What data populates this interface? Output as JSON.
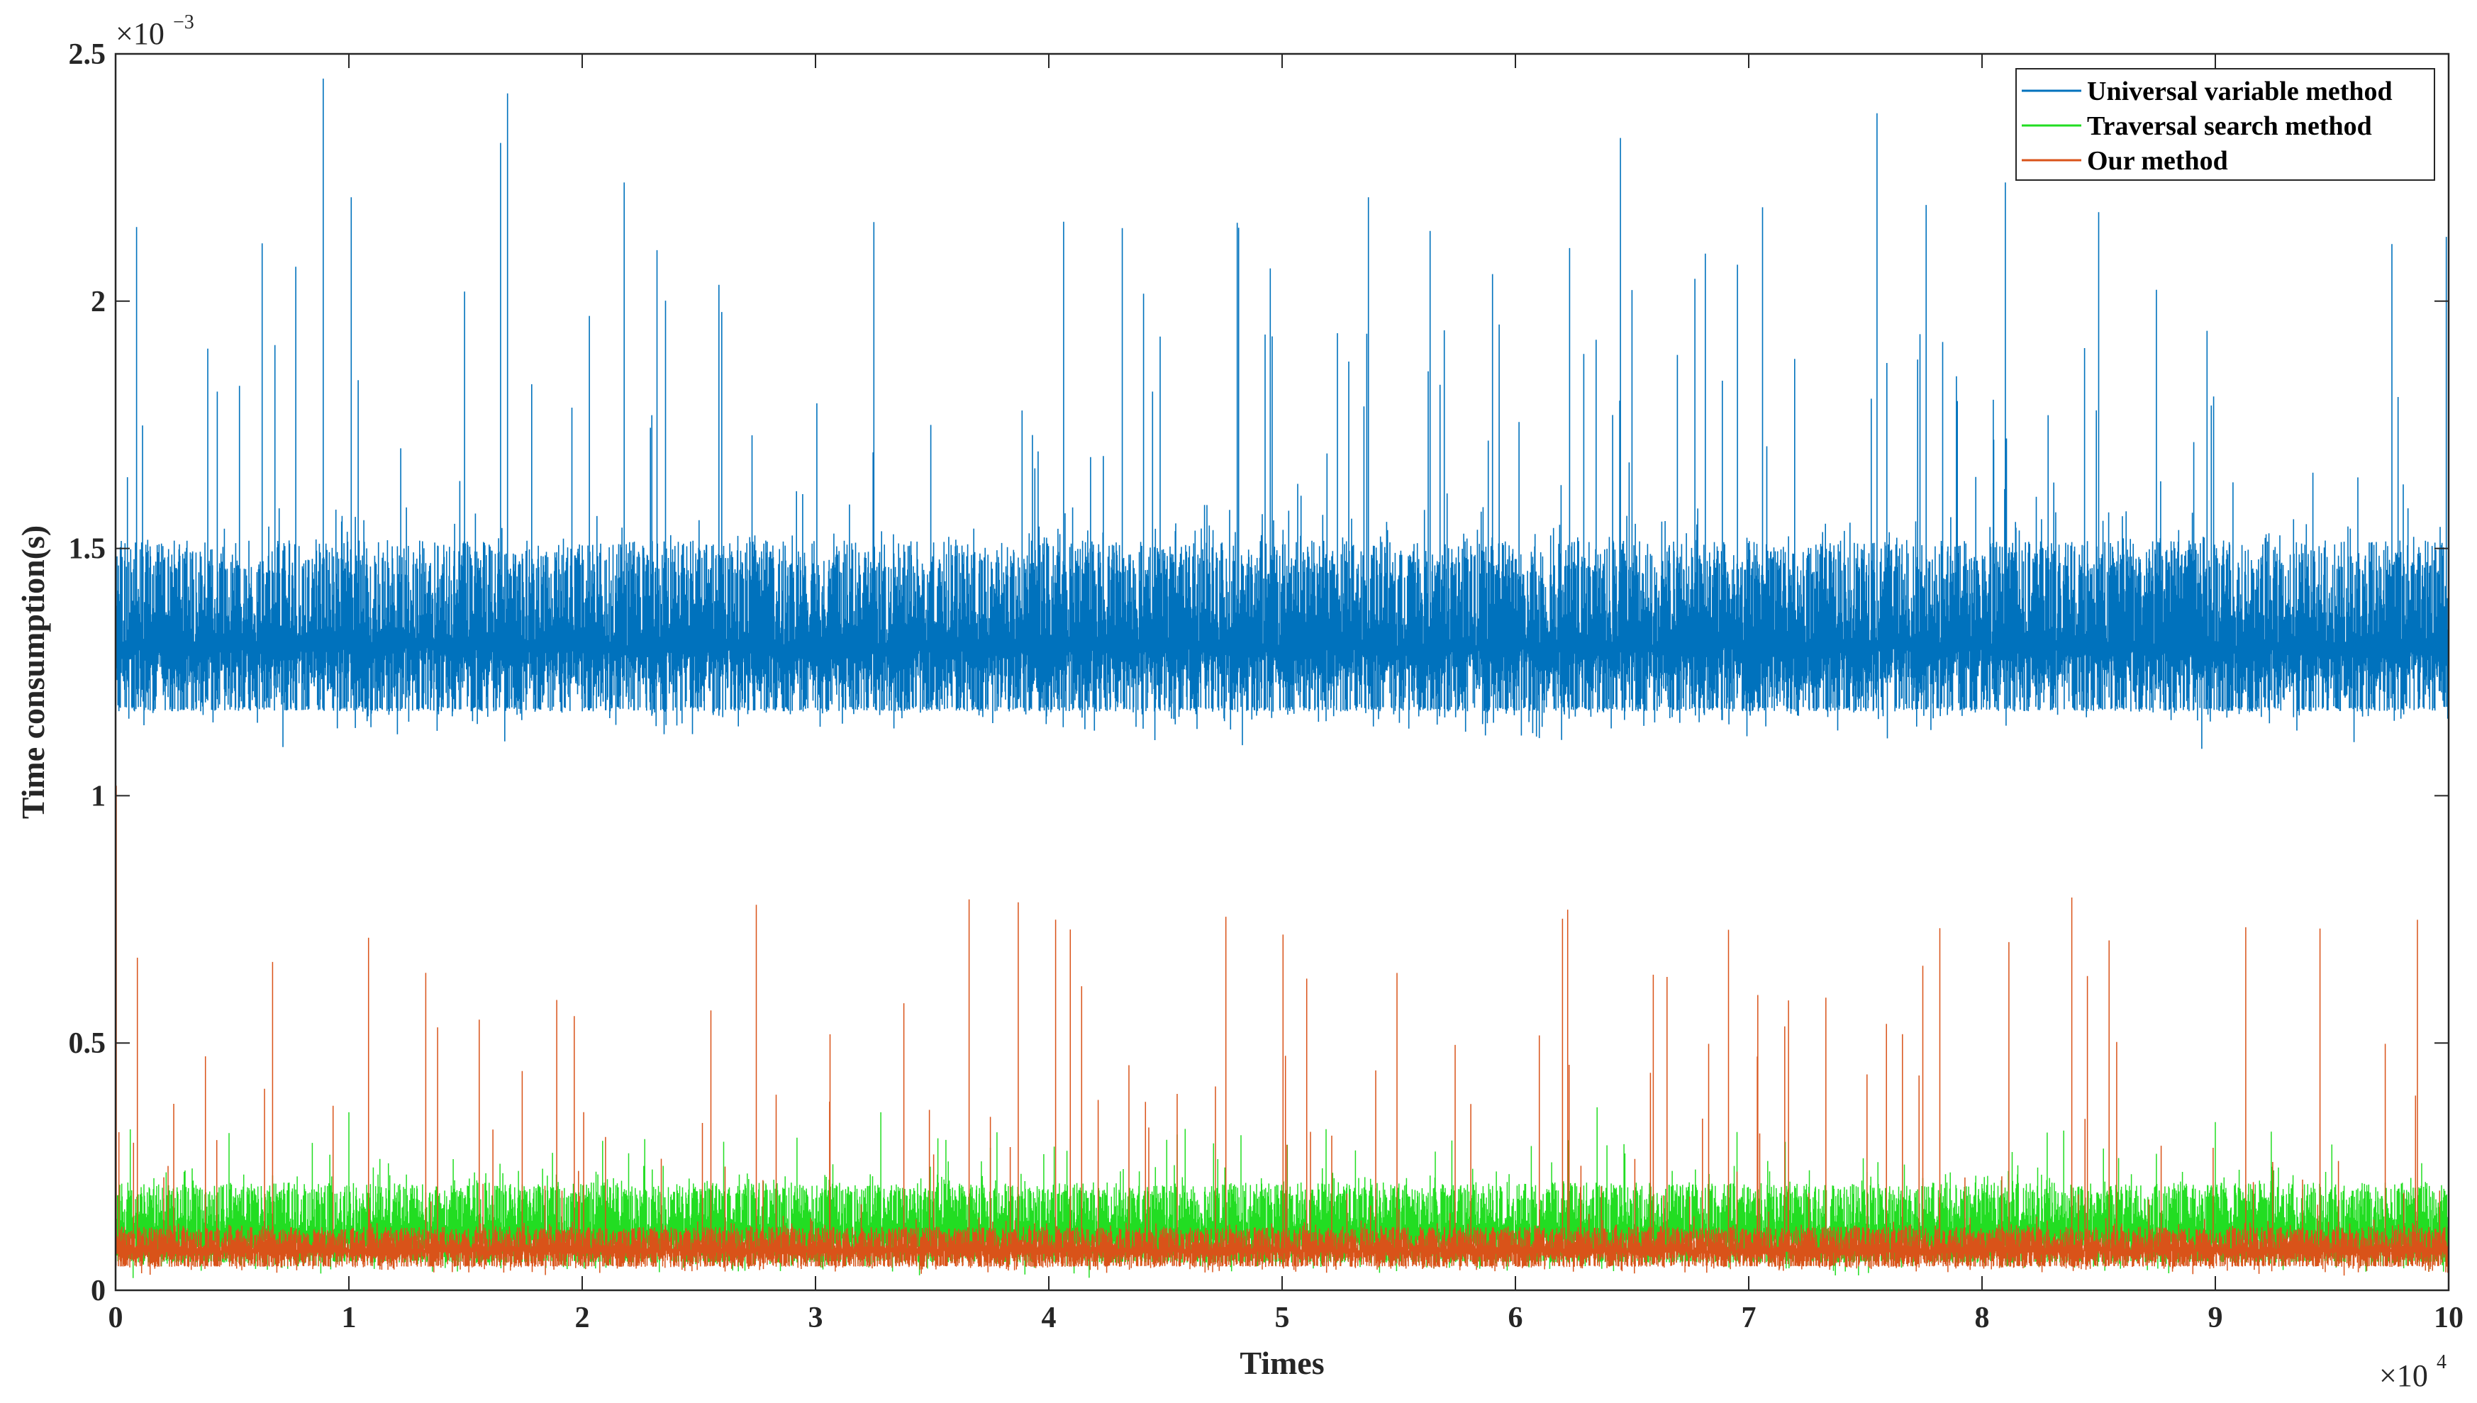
{
  "chart_data": {
    "type": "line",
    "title": "",
    "xlabel": "Times",
    "ylabel": "Time consumption(s)",
    "xlim": [
      0,
      100000
    ],
    "ylim": [
      0,
      0.0025
    ],
    "x_ticks": [
      0,
      1,
      2,
      3,
      4,
      5,
      6,
      7,
      8,
      9,
      10
    ],
    "y_ticks": [
      0,
      0.5,
      1,
      1.5,
      2,
      2.5
    ],
    "x_multiplier": {
      "base": "×10",
      "exp": "4"
    },
    "y_multiplier": {
      "base": "×10",
      "exp": "−3"
    },
    "grid": false,
    "legend_position": "top-right",
    "n_points": 100000,
    "series": [
      {
        "name": "Universal variable method",
        "color": "#0072BD",
        "typical_range": [
          0.00118,
          0.00148
        ],
        "mean": 0.0013,
        "peak_max": 0.00245,
        "spikes": [
          {
            "x": 900,
            "y": 0.00215
          },
          {
            "x": 8900,
            "y": 0.00245
          },
          {
            "x": 10100,
            "y": 0.00221
          },
          {
            "x": 16500,
            "y": 0.00232
          },
          {
            "x": 16800,
            "y": 0.00242
          },
          {
            "x": 21800,
            "y": 0.00224
          },
          {
            "x": 32500,
            "y": 0.00216
          },
          {
            "x": 53700,
            "y": 0.00221
          },
          {
            "x": 64500,
            "y": 0.00233
          },
          {
            "x": 75500,
            "y": 0.00238
          },
          {
            "x": 81000,
            "y": 0.00224
          },
          {
            "x": 85000,
            "y": 0.00218
          },
          {
            "x": 99900,
            "y": 0.00213
          }
        ]
      },
      {
        "name": "Traversal search method",
        "color": "#22DD22",
        "typical_range": [
          6e-05,
          0.0002
        ],
        "mean": 0.00011,
        "peak_max": 0.00037,
        "spikes": [
          {
            "x": 10000,
            "y": 0.00036
          },
          {
            "x": 32800,
            "y": 0.00036
          },
          {
            "x": 63500,
            "y": 0.00037
          },
          {
            "x": 69500,
            "y": 0.00032
          },
          {
            "x": 90000,
            "y": 0.00034
          }
        ]
      },
      {
        "name": "Our method",
        "color": "#D95319",
        "typical_range": [
          5e-05,
          0.00012
        ],
        "mean": 8e-05,
        "peak_max": 0.00102,
        "spikes": [
          {
            "x": 30,
            "y": 0.00102
          },
          {
            "x": 21000,
            "y": 0.00031
          },
          {
            "x": 69500,
            "y": 0.00024
          }
        ]
      }
    ]
  }
}
